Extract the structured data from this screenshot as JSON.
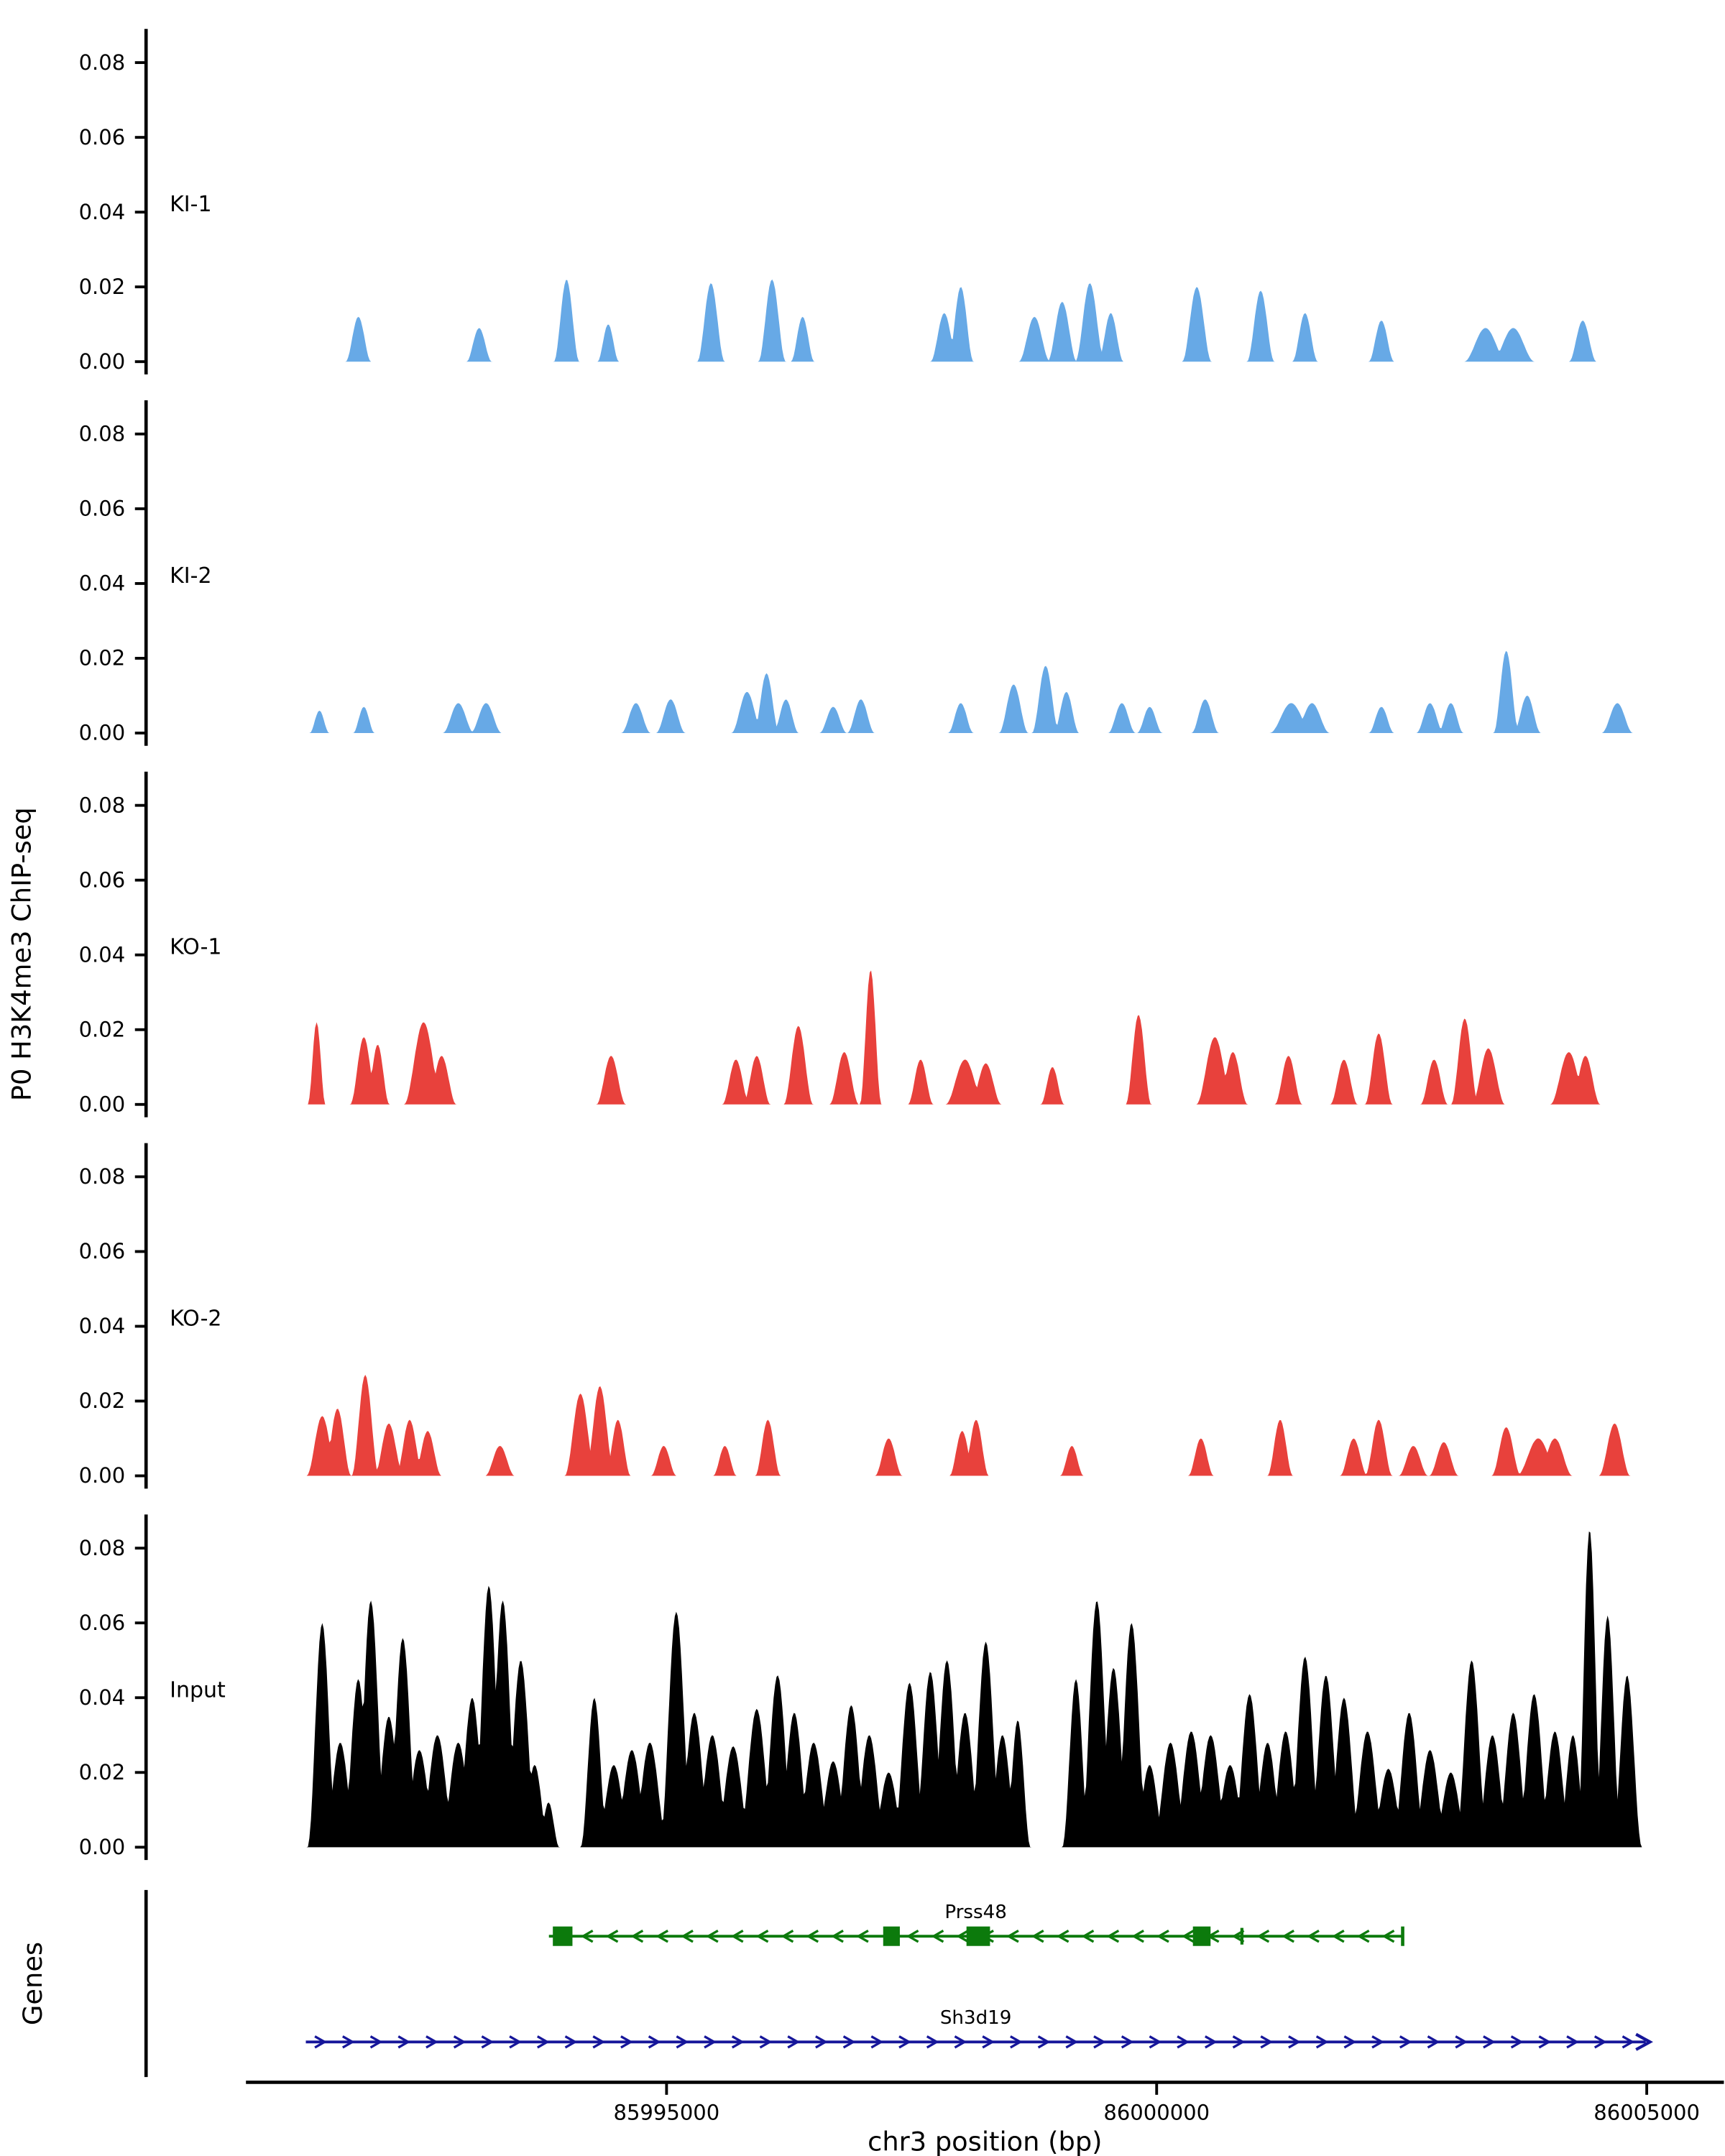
{
  "chart_data": {
    "type": "area",
    "title": "",
    "xlabel": "chr3 position (bp)",
    "ylabel": "P0 H3K4me3 ChIP-seq",
    "genes_label": "Genes",
    "xlim": [
      85989690,
      86005770
    ],
    "ylim": [
      0,
      0.08
    ],
    "grid": false,
    "legend": "none",
    "x_ticks": [
      85995000,
      86000000,
      86005000
    ],
    "x_tick_labels": [
      "85995000",
      "86000000",
      "86005000"
    ],
    "y_ticks": [
      0.0,
      0.02,
      0.04,
      0.06,
      0.08
    ],
    "y_tick_labels": [
      "0.00",
      "0.02",
      "0.04",
      "0.06",
      "0.08"
    ],
    "peak_format": "[center_bp, height, halfwidth_bp]",
    "tracks": [
      {
        "name": "KI-1",
        "color": "#67a9e6",
        "peaks": [
          [
            85991856,
            0.012,
            130
          ],
          [
            85993088,
            0.009,
            130
          ],
          [
            85993980,
            0.022,
            130
          ],
          [
            85994405,
            0.01,
            110
          ],
          [
            85995453,
            0.021,
            140
          ],
          [
            85996076,
            0.022,
            140
          ],
          [
            85996388,
            0.012,
            120
          ],
          [
            85997833,
            0.013,
            140
          ],
          [
            85998002,
            0.02,
            130
          ],
          [
            85998753,
            0.012,
            160
          ],
          [
            85999036,
            0.016,
            150
          ],
          [
            85999319,
            0.021,
            150
          ],
          [
            85999532,
            0.013,
            130
          ],
          [
            86000410,
            0.02,
            150
          ],
          [
            86001061,
            0.019,
            140
          ],
          [
            86001514,
            0.013,
            130
          ],
          [
            86002293,
            0.011,
            130
          ],
          [
            86003355,
            0.009,
            220
          ],
          [
            86003638,
            0.009,
            220
          ],
          [
            86004347,
            0.011,
            140
          ]
        ]
      },
      {
        "name": "KI-2",
        "color": "#67a9e6",
        "peaks": [
          [
            85991459,
            0.006,
            100
          ],
          [
            85991912,
            0.007,
            110
          ],
          [
            85992876,
            0.008,
            160
          ],
          [
            85993159,
            0.008,
            160
          ],
          [
            85994688,
            0.008,
            150
          ],
          [
            85995042,
            0.009,
            150
          ],
          [
            85995821,
            0.011,
            160
          ],
          [
            85996020,
            0.016,
            130
          ],
          [
            85996218,
            0.009,
            130
          ],
          [
            85996700,
            0.007,
            140
          ],
          [
            85996983,
            0.009,
            140
          ],
          [
            85998002,
            0.008,
            130
          ],
          [
            85998541,
            0.013,
            150
          ],
          [
            85998867,
            0.018,
            140
          ],
          [
            85999079,
            0.011,
            130
          ],
          [
            85999645,
            0.008,
            140
          ],
          [
            85999929,
            0.007,
            130
          ],
          [
            86000495,
            0.009,
            140
          ],
          [
            86001373,
            0.008,
            220
          ],
          [
            86001585,
            0.008,
            180
          ],
          [
            86002293,
            0.007,
            130
          ],
          [
            86002789,
            0.008,
            140
          ],
          [
            86003001,
            0.008,
            130
          ],
          [
            86003567,
            0.022,
            130
          ],
          [
            86003780,
            0.01,
            140
          ],
          [
            86004700,
            0.008,
            160
          ]
        ]
      },
      {
        "name": "KO-1",
        "color": "#e8413c",
        "peaks": [
          [
            85991430,
            0.022,
            90
          ],
          [
            85991912,
            0.018,
            140
          ],
          [
            85992053,
            0.016,
            120
          ],
          [
            85992521,
            0.022,
            200
          ],
          [
            85992705,
            0.013,
            150
          ],
          [
            85994434,
            0.013,
            150
          ],
          [
            85995708,
            0.012,
            140
          ],
          [
            85995920,
            0.013,
            140
          ],
          [
            85996345,
            0.021,
            150
          ],
          [
            85996813,
            0.014,
            150
          ],
          [
            85997082,
            0.036,
            110
          ],
          [
            85997592,
            0.012,
            130
          ],
          [
            85998045,
            0.012,
            200
          ],
          [
            85998257,
            0.011,
            160
          ],
          [
            85998937,
            0.01,
            120
          ],
          [
            85999815,
            0.024,
            130
          ],
          [
            86000594,
            0.018,
            190
          ],
          [
            86000778,
            0.014,
            150
          ],
          [
            86001345,
            0.013,
            140
          ],
          [
            86001911,
            0.012,
            140
          ],
          [
            86002265,
            0.019,
            140
          ],
          [
            86002831,
            0.012,
            140
          ],
          [
            86003143,
            0.023,
            140
          ],
          [
            86003384,
            0.015,
            170
          ],
          [
            86004205,
            0.014,
            190
          ],
          [
            86004375,
            0.013,
            150
          ]
        ]
      },
      {
        "name": "KO-2",
        "color": "#e8413c",
        "peaks": [
          [
            85991487,
            0.016,
            160
          ],
          [
            85991643,
            0.018,
            140
          ],
          [
            85991926,
            0.027,
            140
          ],
          [
            85992167,
            0.014,
            150
          ],
          [
            85992379,
            0.015,
            140
          ],
          [
            85992563,
            0.012,
            140
          ],
          [
            85993300,
            0.008,
            150
          ],
          [
            85994121,
            0.022,
            160
          ],
          [
            85994320,
            0.024,
            150
          ],
          [
            85994504,
            0.015,
            130
          ],
          [
            85994971,
            0.008,
            130
          ],
          [
            85995595,
            0.008,
            120
          ],
          [
            85996034,
            0.015,
            130
          ],
          [
            85997266,
            0.01,
            140
          ],
          [
            85998016,
            0.012,
            130
          ],
          [
            85998158,
            0.015,
            130
          ],
          [
            85999135,
            0.008,
            120
          ],
          [
            86000452,
            0.01,
            130
          ],
          [
            86001260,
            0.015,
            130
          ],
          [
            86002010,
            0.01,
            140
          ],
          [
            86002265,
            0.015,
            140
          ],
          [
            86002619,
            0.008,
            150
          ],
          [
            86002930,
            0.009,
            150
          ],
          [
            86003567,
            0.013,
            150
          ],
          [
            86003893,
            0.01,
            220
          ],
          [
            86004063,
            0.01,
            180
          ],
          [
            86004672,
            0.014,
            160
          ]
        ]
      },
      {
        "name": "Input",
        "color": "#000000",
        "peaks": [
          [
            85991487,
            0.06,
            150
          ],
          [
            85991671,
            0.028,
            170
          ],
          [
            85991855,
            0.045,
            160
          ],
          [
            85991983,
            0.066,
            160
          ],
          [
            85992167,
            0.035,
            170
          ],
          [
            85992309,
            0.056,
            160
          ],
          [
            85992478,
            0.026,
            180
          ],
          [
            85992662,
            0.03,
            185
          ],
          [
            85992875,
            0.028,
            185
          ],
          [
            85993017,
            0.04,
            170
          ],
          [
            85993187,
            0.07,
            160
          ],
          [
            85993329,
            0.066,
            160
          ],
          [
            85993513,
            0.05,
            170
          ],
          [
            85993654,
            0.022,
            150
          ],
          [
            85993796,
            0.012,
            110
          ],
          [
            85994263,
            0.04,
            140
          ],
          [
            85994462,
            0.022,
            180
          ],
          [
            85994646,
            0.026,
            185
          ],
          [
            85994830,
            0.028,
            185
          ],
          [
            85995099,
            0.063,
            170
          ],
          [
            85995283,
            0.036,
            175
          ],
          [
            85995467,
            0.03,
            180
          ],
          [
            85995680,
            0.027,
            185
          ],
          [
            85995920,
            0.037,
            185
          ],
          [
            85996133,
            0.046,
            170
          ],
          [
            85996303,
            0.036,
            170
          ],
          [
            85996501,
            0.028,
            180
          ],
          [
            85996700,
            0.023,
            180
          ],
          [
            85996884,
            0.038,
            170
          ],
          [
            85997068,
            0.03,
            175
          ],
          [
            85997266,
            0.02,
            175
          ],
          [
            85997479,
            0.044,
            170
          ],
          [
            85997691,
            0.047,
            165
          ],
          [
            85997861,
            0.05,
            165
          ],
          [
            85998045,
            0.036,
            170
          ],
          [
            85998257,
            0.055,
            165
          ],
          [
            85998427,
            0.03,
            160
          ],
          [
            85998583,
            0.034,
            130
          ],
          [
            85999177,
            0.045,
            140
          ],
          [
            85999390,
            0.066,
            165
          ],
          [
            85999560,
            0.048,
            165
          ],
          [
            85999744,
            0.06,
            165
          ],
          [
            85999928,
            0.022,
            165
          ],
          [
            86000141,
            0.028,
            180
          ],
          [
            86000353,
            0.031,
            185
          ],
          [
            86000551,
            0.03,
            185
          ],
          [
            86000749,
            0.022,
            185
          ],
          [
            86000948,
            0.041,
            170
          ],
          [
            86001132,
            0.028,
            170
          ],
          [
            86001316,
            0.031,
            170
          ],
          [
            86001514,
            0.051,
            165
          ],
          [
            86001727,
            0.046,
            170
          ],
          [
            86001911,
            0.04,
            170
          ],
          [
            86002151,
            0.031,
            180
          ],
          [
            86002364,
            0.021,
            180
          ],
          [
            86002576,
            0.036,
            170
          ],
          [
            86002789,
            0.026,
            180
          ],
          [
            86003001,
            0.02,
            180
          ],
          [
            86003214,
            0.05,
            165
          ],
          [
            86003426,
            0.03,
            170
          ],
          [
            86003638,
            0.036,
            170
          ],
          [
            86003851,
            0.041,
            170
          ],
          [
            86004063,
            0.031,
            170
          ],
          [
            86004247,
            0.03,
            150
          ],
          [
            86004417,
            0.085,
            130
          ],
          [
            86004601,
            0.062,
            140
          ],
          [
            86004800,
            0.046,
            150
          ]
        ]
      }
    ],
    "genes": [
      {
        "name": "Prss48",
        "strand": "-",
        "color": "#0c7a0c",
        "start": 85993800,
        "end": 86002510,
        "exons": [
          [
            85993840,
            85994040
          ],
          [
            85997210,
            85997380
          ],
          [
            85998060,
            85998300
          ],
          [
            86000370,
            86000550
          ]
        ],
        "ticks": [
          86000870
        ],
        "bars": [
          86002510
        ]
      },
      {
        "name": "Sh3d19",
        "strand": "+",
        "color": "#16169a",
        "start": 85991320,
        "end": 86004990,
        "exons": [],
        "ticks": [],
        "bars": []
      }
    ]
  }
}
